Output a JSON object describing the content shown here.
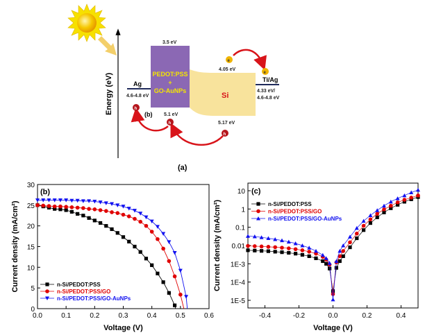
{
  "diagram": {
    "panel_label": "(a)",
    "inset_label": "(b)",
    "axis_label": "Energy (eV)",
    "pedot_label_1": "PEDOT:PSS",
    "pedot_label_2": "+",
    "pedot_label_3": "GO-AuNPs",
    "si_label": "Si",
    "ag_label": "Ag",
    "ag_energy": "4.6-4.8 eV",
    "tiag_label": "Ti/Ag",
    "tiag_energy_1": "4.33 eV/",
    "tiag_energy_2": "4.6-4.8 eV",
    "pedot_lumo": "3.5 eV",
    "pedot_homo": "5.1 eV",
    "si_cb": "4.05 eV",
    "si_vb": "5.17 eV",
    "electron": "e",
    "hole": "h",
    "colors": {
      "pedot": "#8b68b4",
      "si": "#f8e39c",
      "arrow": "#d8141a",
      "lines": "#1f2a5a",
      "electron": "#f0b400",
      "hole": "#b5161c"
    }
  },
  "chart_data": [
    {
      "type": "line",
      "panel": "(b)",
      "xlabel": "Voltage (V)",
      "ylabel": "Current density (mA/cm²)",
      "xlim": [
        0,
        0.6
      ],
      "ylim": [
        0,
        30
      ],
      "xticks": [
        "0.0",
        "0.1",
        "0.2",
        "0.3",
        "0.4",
        "0.5",
        "0.6"
      ],
      "yticks": [
        "0",
        "5",
        "10",
        "15",
        "20",
        "25",
        "30"
      ],
      "legend_position": "bottom-left",
      "series": [
        {
          "name": "n-Si/PEDOT:PSS",
          "color": "#000000",
          "marker": "square",
          "x": [
            0,
            0.02,
            0.04,
            0.06,
            0.08,
            0.1,
            0.12,
            0.14,
            0.16,
            0.18,
            0.2,
            0.22,
            0.24,
            0.26,
            0.28,
            0.3,
            0.32,
            0.34,
            0.36,
            0.38,
            0.4,
            0.42,
            0.44,
            0.46,
            0.48,
            0.483
          ],
          "y": [
            25.0,
            24.7,
            24.4,
            24.1,
            24.0,
            23.8,
            23.4,
            22.9,
            22.5,
            21.9,
            21.3,
            20.7,
            20.0,
            19.2,
            18.3,
            17.3,
            16.2,
            15.0,
            13.7,
            12.1,
            10.5,
            8.5,
            6.4,
            3.8,
            0.8,
            0
          ]
        },
        {
          "name": "n-Si/PEDOT:PSS/GO",
          "color": "#e00000",
          "marker": "circle",
          "x": [
            0,
            0.02,
            0.04,
            0.06,
            0.08,
            0.1,
            0.12,
            0.14,
            0.16,
            0.18,
            0.2,
            0.22,
            0.24,
            0.26,
            0.28,
            0.3,
            0.32,
            0.34,
            0.36,
            0.38,
            0.4,
            0.42,
            0.44,
            0.46,
            0.48,
            0.5,
            0.512
          ],
          "y": [
            25.0,
            24.9,
            24.8,
            24.7,
            24.7,
            24.6,
            24.5,
            24.4,
            24.3,
            24.1,
            24.0,
            23.8,
            23.6,
            23.3,
            23.1,
            22.7,
            22.3,
            21.7,
            21.0,
            20.0,
            18.6,
            16.8,
            14.5,
            11.5,
            7.8,
            3.4,
            0
          ]
        },
        {
          "name": "n-Si/PEDOT:PSS/GO-AuNPs",
          "color": "#1010f0",
          "marker": "triangle-down",
          "x": [
            0,
            0.02,
            0.04,
            0.06,
            0.08,
            0.1,
            0.12,
            0.14,
            0.16,
            0.18,
            0.2,
            0.22,
            0.24,
            0.26,
            0.28,
            0.3,
            0.32,
            0.34,
            0.36,
            0.38,
            0.4,
            0.42,
            0.44,
            0.46,
            0.48,
            0.5,
            0.52,
            0.524
          ],
          "y": [
            26.2,
            26.2,
            26.2,
            26.2,
            26.2,
            26.2,
            26.1,
            26.1,
            26.0,
            26.0,
            25.9,
            25.7,
            25.5,
            25.3,
            25.0,
            24.7,
            24.2,
            23.7,
            23.0,
            22.1,
            21.1,
            19.8,
            18.1,
            16.1,
            13.5,
            9.2,
            2.9,
            0
          ]
        }
      ]
    },
    {
      "type": "line",
      "panel": "(c)",
      "xlabel": "Voltage (V)",
      "ylabel": "Current density (mA/cm²)",
      "yscale": "log",
      "xlim": [
        -0.5,
        0.5
      ],
      "ylim": [
        5e-06,
        20
      ],
      "xticks": [
        "-0.4",
        "-0.2",
        "0.0",
        "0.2",
        "0.4"
      ],
      "xtick_values": [
        -0.4,
        -0.2,
        0,
        0.2,
        0.4
      ],
      "yticks": [
        "10",
        "1",
        "0.1",
        "0.01",
        "1E-3",
        "1E-4",
        "1E-5"
      ],
      "ytick_values": [
        10,
        1,
        0.1,
        0.01,
        0.001,
        0.0001,
        1e-05
      ],
      "legend_position": "top-left",
      "x": [
        -0.5,
        -0.46,
        -0.42,
        -0.38,
        -0.34,
        -0.3,
        -0.26,
        -0.22,
        -0.18,
        -0.14,
        -0.1,
        -0.06,
        -0.04,
        -0.02,
        0,
        0.02,
        0.04,
        0.06,
        0.1,
        0.14,
        0.18,
        0.22,
        0.26,
        0.3,
        0.34,
        0.38,
        0.42,
        0.46,
        0.5
      ],
      "series": [
        {
          "name": "n-Si/PEDOT:PSS",
          "color": "#000000",
          "marker": "square",
          "y": [
            0.0055,
            0.0053,
            0.0051,
            0.0049,
            0.0046,
            0.0043,
            0.004,
            0.0036,
            0.0031,
            0.0026,
            0.002,
            0.0014,
            0.001,
            0.00055,
            3.2e-05,
            0.0006,
            0.0014,
            0.0026,
            0.008,
            0.025,
            0.07,
            0.17,
            0.35,
            0.65,
            1.1,
            1.7,
            2.5,
            3.4,
            4.5
          ]
        },
        {
          "name": "n-Si/PEDOT:PSS/GO",
          "color": "#e00000",
          "marker": "circle",
          "y": [
            0.0095,
            0.0092,
            0.0089,
            0.0085,
            0.0081,
            0.0076,
            0.007,
            0.0063,
            0.0055,
            0.0046,
            0.0036,
            0.0024,
            0.0017,
            0.0009,
            2.2e-05,
            0.0012,
            0.0026,
            0.005,
            0.015,
            0.045,
            0.12,
            0.27,
            0.55,
            0.95,
            1.5,
            2.3,
            3.2,
            4.2,
            5.5
          ]
        },
        {
          "name": "n-Si/PEDOT:PSS/GO-AuNPs",
          "color": "#1010f0",
          "marker": "triangle-up",
          "y": [
            0.033,
            0.031,
            0.028,
            0.025,
            0.022,
            0.019,
            0.016,
            0.013,
            0.01,
            0.0075,
            0.005,
            0.003,
            0.002,
            0.0011,
            1.1e-05,
            0.0014,
            0.005,
            0.01,
            0.03,
            0.09,
            0.22,
            0.45,
            0.85,
            1.5,
            2.5,
            3.8,
            5.5,
            8,
            11
          ]
        }
      ]
    }
  ]
}
